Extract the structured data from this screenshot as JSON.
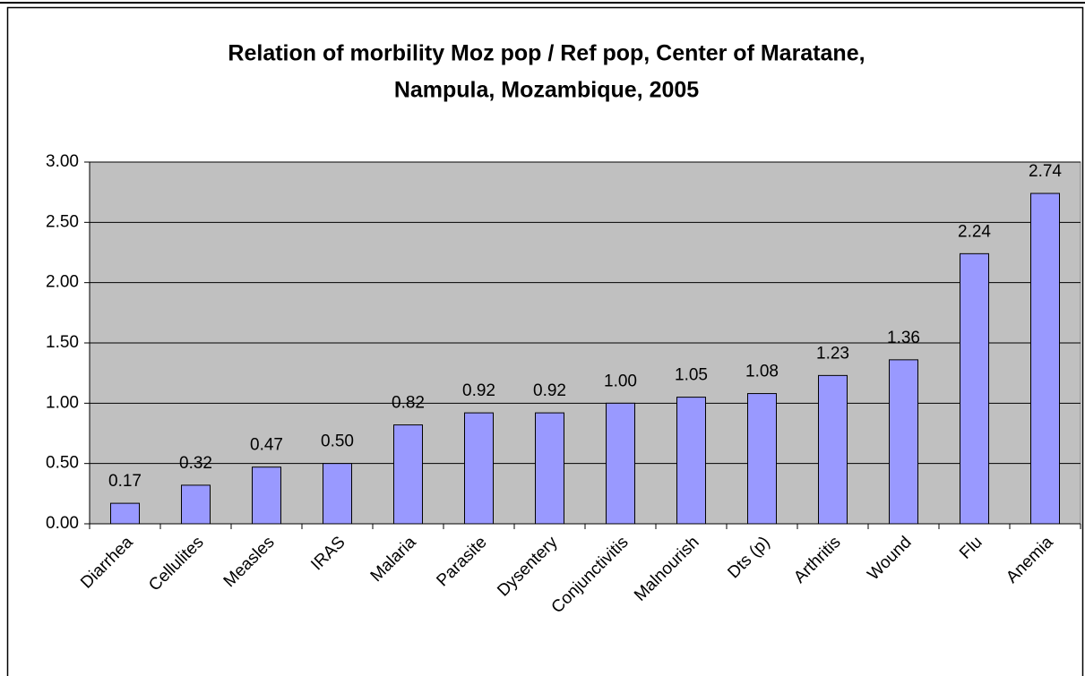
{
  "chart_data": {
    "type": "bar",
    "title": [
      "Relation of morbility Moz pop / Ref pop, Center of Maratane,",
      "Nampula, Mozambique, 2005"
    ],
    "categories": [
      "Diarrhea",
      "Cellulites",
      "Measles",
      "IRAS",
      "Malaria",
      "Parasite",
      "Dysentery",
      "Conjunctivitis",
      "Malnourish",
      "Dts (p)",
      "Arthritis",
      "Wound",
      "Flu",
      "Anemia"
    ],
    "values": [
      0.17,
      0.32,
      0.47,
      0.5,
      0.82,
      0.92,
      0.92,
      1.0,
      1.05,
      1.08,
      1.23,
      1.36,
      2.24,
      2.74
    ],
    "value_labels": [
      "0.17",
      "0.32",
      "0.47",
      "0.50",
      "0.82",
      "0.92",
      "0.92",
      "1.00",
      "1.05",
      "1.08",
      "1.23",
      "1.36",
      "2.24",
      "2.74"
    ],
    "color": "#9999ff",
    "ylim": [
      0,
      3
    ],
    "yticks": [
      {
        "value": 0,
        "label": "0.00"
      },
      {
        "value": 0.5,
        "label": "0.50"
      },
      {
        "value": 1,
        "label": "1.00"
      },
      {
        "value": 1.5,
        "label": "1.50"
      },
      {
        "value": 2,
        "label": "2.00"
      },
      {
        "value": 2.5,
        "label": "2.50"
      },
      {
        "value": 3,
        "label": "3.00"
      }
    ],
    "grid": true
  }
}
